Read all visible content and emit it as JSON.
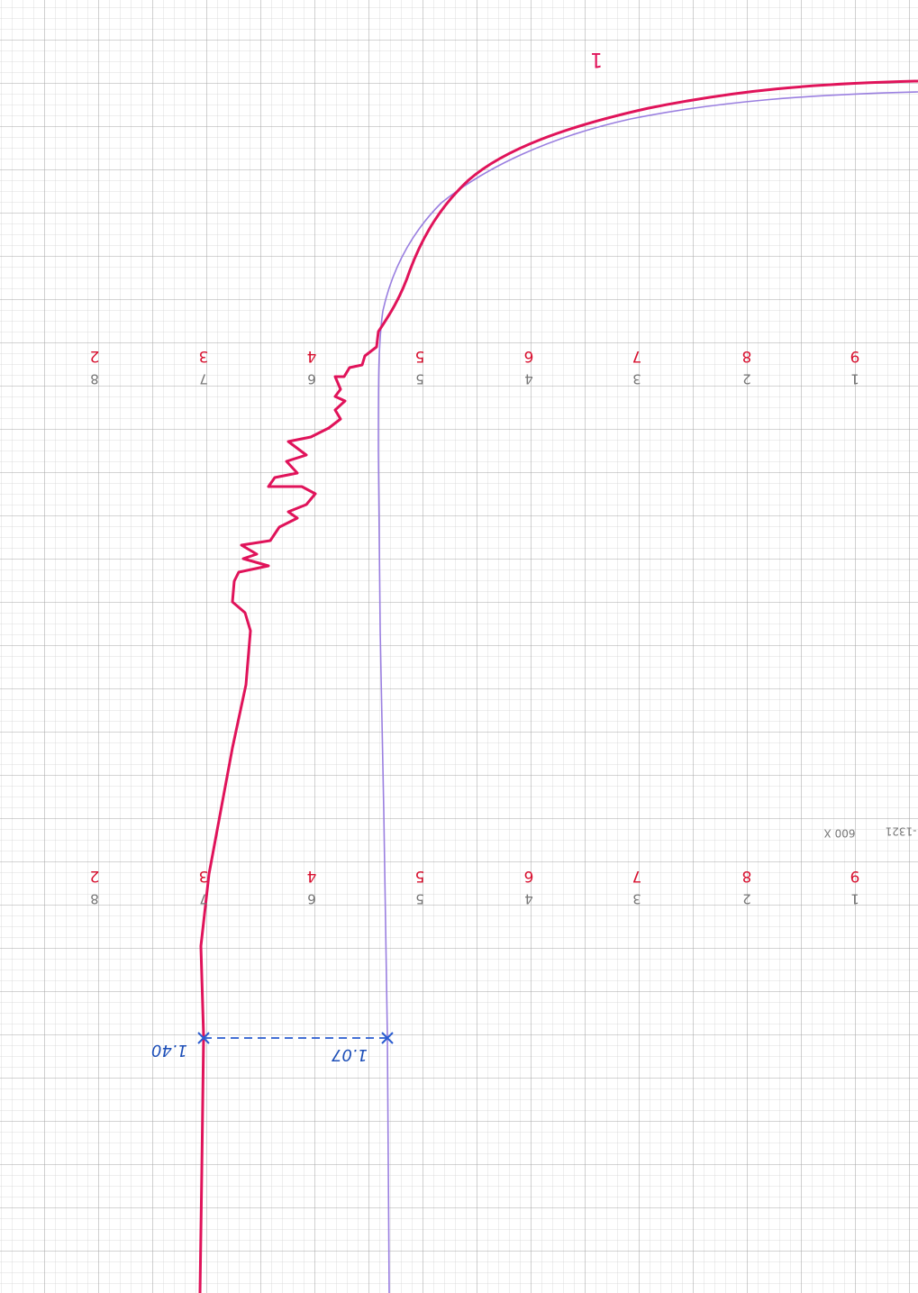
{
  "scale_rows": [
    {
      "red": [
        "2",
        "3",
        "4",
        "5",
        "6",
        "7",
        "8",
        "9"
      ],
      "gray": [
        "8",
        "7",
        "6",
        "5",
        "4",
        "3",
        "2",
        "1"
      ]
    },
    {
      "red": [
        "2",
        "3",
        "4",
        "5",
        "6",
        "7",
        "8",
        "9"
      ],
      "gray": [
        "8",
        "7",
        "6",
        "5",
        "4",
        "3",
        "2",
        "1"
      ]
    }
  ],
  "margin_text": [
    "600 X",
    "-1321"
  ],
  "annotations": {
    "top": "1",
    "left": "1.40",
    "right": "1.07"
  }
}
